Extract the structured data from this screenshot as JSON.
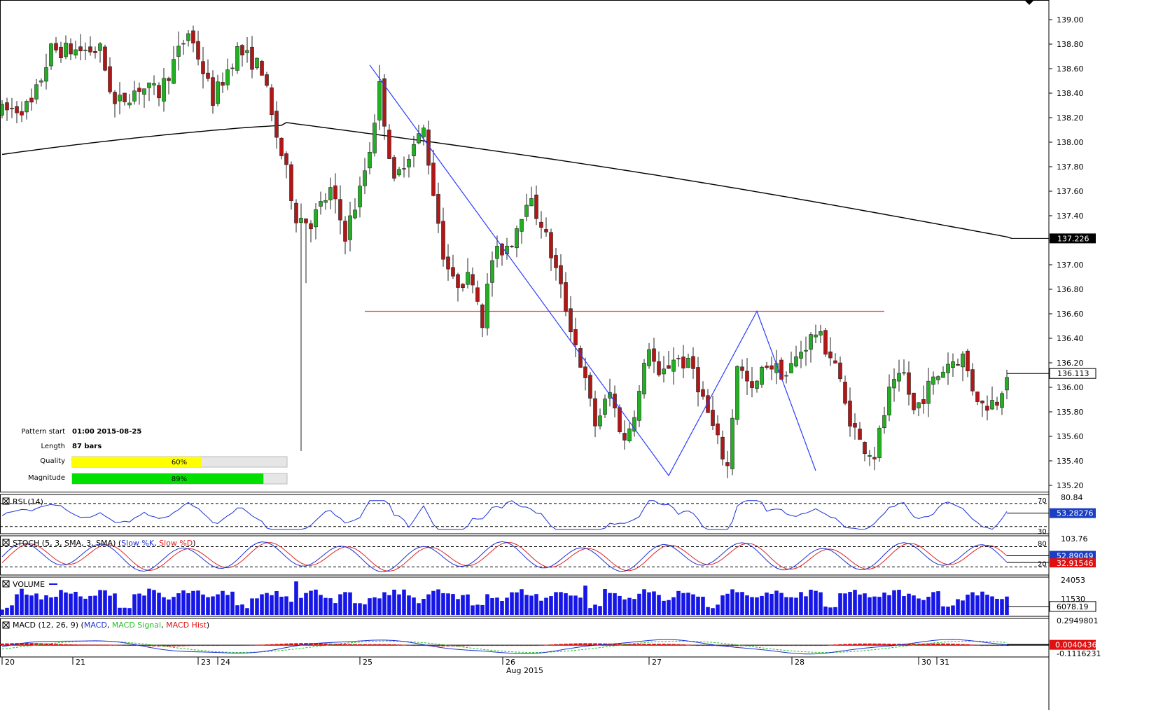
{
  "chart_data": {
    "type": "candlestick",
    "instrument_note": "",
    "x_dates": [
      "20",
      "21",
      "23",
      "24",
      "25",
      "26",
      "27",
      "28",
      "30",
      "31"
    ],
    "x_month_label": "Aug 2015",
    "main": {
      "ylim": [
        135.1,
        139.15
      ],
      "yticks": [
        "139.00",
        "138.80",
        "138.60",
        "138.40",
        "138.20",
        "138.00",
        "137.80",
        "137.60",
        "137.40",
        "137.20",
        "137.00",
        "136.80",
        "136.60",
        "136.40",
        "136.20",
        "136.00",
        "135.80",
        "135.60",
        "135.40",
        "135.20"
      ],
      "ma_last": "137.226",
      "price_last": "136.113",
      "resistance_level": 136.62,
      "pattern_points": [
        {
          "bar": 87,
          "price": 138.63
        },
        {
          "bar": 148,
          "price": 135.28
        },
        {
          "bar": 166,
          "price": 136.62
        },
        {
          "bar": 178,
          "price": 135.32
        }
      ]
    },
    "pattern_info": {
      "start_label": "Pattern start",
      "start_value": "01:00 2015-08-25",
      "length_label": "Length",
      "length_value": "87 bars",
      "quality_label": "Quality",
      "quality_value": 60,
      "quality_text": "60%",
      "magnitude_label": "Magnitude",
      "magnitude_value": 89,
      "magnitude_text": "89%"
    },
    "rsi": {
      "label": "RSI (14)",
      "top_tick": "80.84",
      "upper": "70",
      "lower": "30",
      "last": "53.28276"
    },
    "stoch": {
      "label_prefix": "STOCH (5, 3, SMA, 3, SMA) (",
      "k_label": "Slow %K",
      "sep": ", ",
      "d_label": "Slow %D",
      "suffix": ")",
      "top_tick": "103.76",
      "upper": "80",
      "lower": "20",
      "k_last": "52.89049",
      "d_last": "32.91546"
    },
    "volume": {
      "label": "VOLUME",
      "top_tick": "24053",
      "mid_tick": "11530",
      "last": "6078.19"
    },
    "macd": {
      "label_prefix": "MACD (12, 26, 9) (",
      "macd_label": "MACD",
      "signal_label": "MACD Signal",
      "hist_label": "MACD Hist",
      "suffix": ")",
      "top_tick": "0.2949801",
      "bottom_tick": "-0.1116231",
      "last": "0.0040436"
    },
    "colors": {
      "bull": "#22b022",
      "bear": "#b01818",
      "ma": "#000000",
      "pattern": "#2b3cff",
      "resistance": "#ff4040",
      "rsi": "#1b2fd6",
      "stoch_k": "#1b2fd6",
      "stoch_d": "#e02020",
      "volume": "#1616e6",
      "macd": "#1b2fd6",
      "signal": "#22c022",
      "hist": "#e01010",
      "quality_bar": "#ffff00",
      "magnitude_bar": "#00e000"
    }
  }
}
